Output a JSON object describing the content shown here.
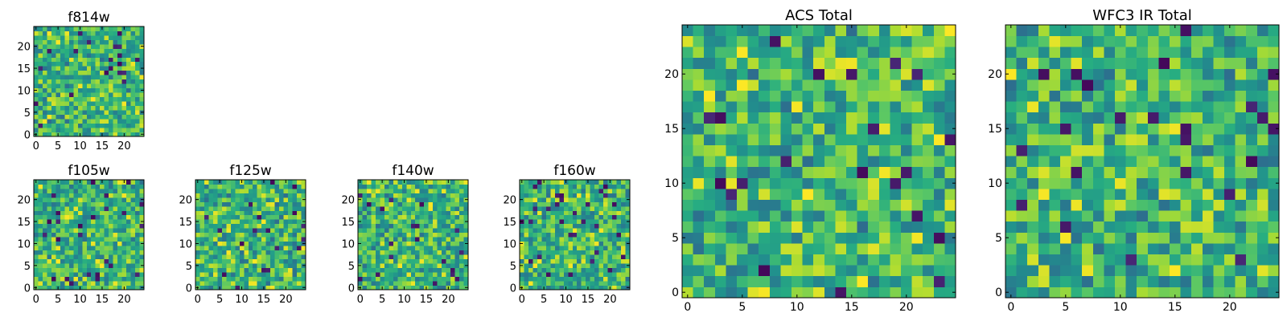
{
  "chart_data": [
    {
      "type": "heatmap",
      "title": "f814w",
      "colormap": "viridis",
      "grid_size": 25,
      "xlim": [
        0,
        24
      ],
      "ylim": [
        0,
        24
      ],
      "xticks": [
        0,
        5,
        10,
        15,
        20
      ],
      "yticks": [
        0,
        5,
        10,
        15,
        20
      ],
      "xlabel": "",
      "ylabel": ""
    },
    {
      "type": "heatmap",
      "title": "f105w",
      "colormap": "viridis",
      "grid_size": 25,
      "xlim": [
        0,
        24
      ],
      "ylim": [
        0,
        24
      ],
      "xticks": [
        0,
        5,
        10,
        15,
        20
      ],
      "yticks": [
        0,
        5,
        10,
        15,
        20
      ],
      "xlabel": "",
      "ylabel": ""
    },
    {
      "type": "heatmap",
      "title": "f125w",
      "colormap": "viridis",
      "grid_size": 25,
      "xlim": [
        0,
        24
      ],
      "ylim": [
        0,
        24
      ],
      "xticks": [
        0,
        5,
        10,
        15,
        20
      ],
      "yticks": [
        0,
        5,
        10,
        15,
        20
      ],
      "xlabel": "",
      "ylabel": ""
    },
    {
      "type": "heatmap",
      "title": "f140w",
      "colormap": "viridis",
      "grid_size": 25,
      "xlim": [
        0,
        24
      ],
      "ylim": [
        0,
        24
      ],
      "xticks": [
        0,
        5,
        10,
        15,
        20
      ],
      "yticks": [
        0,
        5,
        10,
        15,
        20
      ],
      "xlabel": "",
      "ylabel": ""
    },
    {
      "type": "heatmap",
      "title": "f160w",
      "colormap": "viridis",
      "grid_size": 25,
      "xlim": [
        0,
        24
      ],
      "ylim": [
        0,
        24
      ],
      "xticks": [
        0,
        5,
        10,
        15,
        20
      ],
      "yticks": [
        0,
        5,
        10,
        15,
        20
      ],
      "xlabel": "",
      "ylabel": ""
    },
    {
      "type": "heatmap",
      "title": "ACS Total",
      "colormap": "viridis",
      "grid_size": 25,
      "xlim": [
        0,
        24
      ],
      "ylim": [
        0,
        24
      ],
      "xticks": [
        0,
        5,
        10,
        15,
        20
      ],
      "yticks": [
        0,
        5,
        10,
        15,
        20
      ],
      "xlabel": "",
      "ylabel": ""
    },
    {
      "type": "heatmap",
      "title": "WFC3 IR Total",
      "colormap": "viridis",
      "grid_size": 25,
      "xlim": [
        0,
        24
      ],
      "ylim": [
        0,
        24
      ],
      "xticks": [
        0,
        5,
        10,
        15,
        20
      ],
      "yticks": [
        0,
        5,
        10,
        15,
        20
      ],
      "xlabel": "",
      "ylabel": ""
    }
  ],
  "colors": {
    "viridis_dark": "#440154",
    "viridis_blue": "#31688e",
    "viridis_teal": "#21918c",
    "viridis_green": "#5ec962",
    "viridis_yellow": "#fde725",
    "axis": "#000000",
    "background": "#ffffff"
  }
}
